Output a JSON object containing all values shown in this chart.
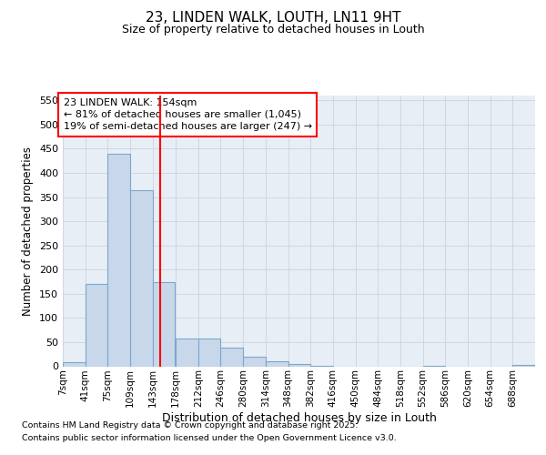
{
  "title1": "23, LINDEN WALK, LOUTH, LN11 9HT",
  "title2": "Size of property relative to detached houses in Louth",
  "xlabel": "Distribution of detached houses by size in Louth",
  "ylabel": "Number of detached properties",
  "bins": [
    "7sqm",
    "41sqm",
    "75sqm",
    "109sqm",
    "143sqm",
    "178sqm",
    "212sqm",
    "246sqm",
    "280sqm",
    "314sqm",
    "348sqm",
    "382sqm",
    "416sqm",
    "450sqm",
    "484sqm",
    "518sqm",
    "552sqm",
    "586sqm",
    "620sqm",
    "654sqm",
    "688sqm"
  ],
  "bin_edges": [
    7,
    41,
    75,
    109,
    143,
    178,
    212,
    246,
    280,
    314,
    348,
    382,
    416,
    450,
    484,
    518,
    552,
    586,
    620,
    654,
    688
  ],
  "values": [
    8,
    170,
    440,
    365,
    175,
    57,
    57,
    38,
    20,
    10,
    4,
    1,
    0,
    0,
    0,
    0,
    1,
    0,
    0,
    0,
    2
  ],
  "bar_color": "#c8d8ea",
  "bar_edge_color": "#7ba7cc",
  "grid_color": "#c8d4e4",
  "bg_color": "#e8eef6",
  "red_line_x": 154,
  "annotation_title": "23 LINDEN WALK: 154sqm",
  "annotation_line1": "← 81% of detached houses are smaller (1,045)",
  "annotation_line2": "19% of semi-detached houses are larger (247) →",
  "ylim": [
    0,
    560
  ],
  "yticks": [
    0,
    50,
    100,
    150,
    200,
    250,
    300,
    350,
    400,
    450,
    500,
    550
  ],
  "footnote1": "Contains HM Land Registry data © Crown copyright and database right 2025.",
  "footnote2": "Contains public sector information licensed under the Open Government Licence v3.0."
}
